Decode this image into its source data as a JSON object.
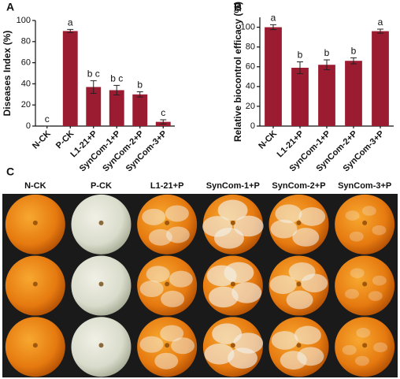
{
  "chart_data": [
    {
      "type": "bar",
      "panel": "A",
      "ylabel": "Diseases Index (%)",
      "categories": [
        "N-CK",
        "P-CK",
        "L1-21+P",
        "SynCom-1+P",
        "SynCom-2+P",
        "SynCom-3+P"
      ],
      "values": [
        0,
        90,
        37,
        34,
        30,
        4
      ],
      "errors": [
        0,
        1.5,
        6,
        4.5,
        2.5,
        2
      ],
      "annotations": [
        "c",
        "a",
        "b c",
        "b c",
        "b",
        "c"
      ],
      "color": "#9b1b30",
      "ylim": [
        0,
        100
      ],
      "yticks": [
        0,
        20,
        40,
        60,
        80,
        100
      ]
    },
    {
      "type": "bar",
      "panel": "B",
      "ylabel": "Relative biocontrol efficacy (%)",
      "categories": [
        "N-CK",
        "L1-21+P",
        "SynCom-1+P",
        "SynCom-2+P",
        "SynCom-3+P"
      ],
      "values": [
        100,
        59,
        62,
        66,
        96
      ],
      "errors": [
        2.5,
        6,
        5,
        3,
        2
      ],
      "annotations": [
        "a",
        "b",
        "b",
        "b",
        "a"
      ],
      "color": "#9b1b30",
      "ylim": [
        0,
        110
      ],
      "yticks": [
        0,
        20,
        40,
        60,
        80,
        100
      ]
    }
  ],
  "panel_c": {
    "panel": "C",
    "columns": [
      "N-CK",
      "P-CK",
      "L1-21+P",
      "SynCom-1+P",
      "SynCom-2+P",
      "SynCom-3+P"
    ]
  }
}
